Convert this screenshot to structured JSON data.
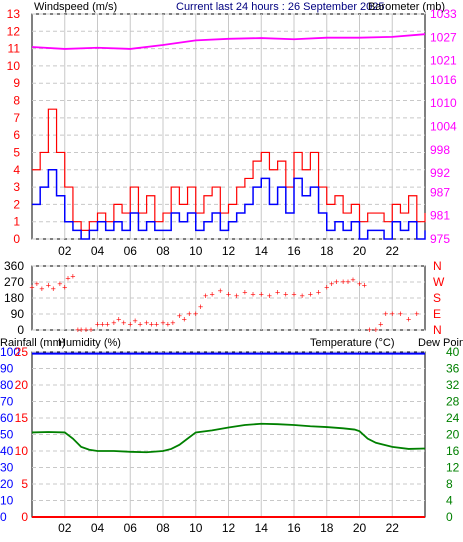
{
  "header": {
    "windspeed_label": "Windspeed (m/s)",
    "title": "Current last 24 hours : 26 September 2025",
    "barometer_label": "Barometer (mb)"
  },
  "panel_labels": {
    "rainfall": "Rainfall (mm)",
    "humidity": "Humidity (%)",
    "temperature": "Temperature (°C)",
    "dew_point": "Dew Point"
  },
  "colors": {
    "wind_gust": "#ff0000",
    "wind_avg": "#0000ff",
    "barometer": "#ff00ff",
    "rain": "#ff0000",
    "humidity": "#0000ff",
    "temperature": "#008000",
    "left_axis_red": "#ff0000",
    "grid": "#c8c8c8"
  },
  "chart_data": [
    {
      "type": "line",
      "x_ticks": [
        "02",
        "04",
        "06",
        "08",
        "10",
        "12",
        "14",
        "16",
        "18",
        "20",
        "22"
      ],
      "x_range_hours": [
        0,
        24
      ],
      "left_axis": {
        "label": "Windspeed (m/s)",
        "ticks": [
          "0",
          "1",
          "2",
          "3",
          "4",
          "5",
          "6",
          "7",
          "8",
          "9",
          "10",
          "11",
          "12",
          "13"
        ],
        "range": [
          0,
          13
        ]
      },
      "right_axis": {
        "label": "Barometer (mb)",
        "ticks": [
          "975",
          "981",
          "987",
          "992",
          "998",
          "1004",
          "1010",
          "1016",
          "1021",
          "1027",
          "1033"
        ],
        "range": [
          975,
          1033
        ]
      },
      "series": [
        {
          "name": "gust",
          "axis": "left",
          "x": [
            0,
            0.5,
            1,
            1.5,
            2,
            2.5,
            3,
            3.5,
            4,
            4.5,
            5,
            5.5,
            6,
            6.5,
            7,
            7.5,
            8,
            8.5,
            9,
            9.5,
            10,
            10.5,
            11,
            11.5,
            12,
            12.5,
            13,
            13.5,
            14,
            14.5,
            15,
            15.5,
            16,
            16.5,
            17,
            17.5,
            18,
            18.5,
            19,
            19.5,
            20,
            20.5,
            21,
            21.5,
            22,
            22.5,
            23,
            23.5,
            24
          ],
          "values": [
            4,
            5,
            7.5,
            5,
            3,
            1,
            0.5,
            1,
            1.5,
            1,
            2,
            1.5,
            3,
            1.5,
            2.5,
            1,
            1.5,
            3,
            2,
            3,
            1.5,
            2.5,
            3,
            1.5,
            2,
            3,
            3.5,
            4.5,
            5,
            4,
            4.5,
            3,
            5,
            4,
            5,
            3,
            2,
            2.5,
            1.5,
            2,
            1,
            1.5,
            1.5,
            1,
            2,
            1.5,
            2.5,
            1,
            1.5
          ]
        },
        {
          "name": "average",
          "axis": "left",
          "x": [
            0,
            0.5,
            1,
            1.5,
            2,
            2.5,
            3,
            3.5,
            4,
            4.5,
            5,
            5.5,
            6,
            6.5,
            7,
            7.5,
            8,
            8.5,
            9,
            9.5,
            10,
            10.5,
            11,
            11.5,
            12,
            12.5,
            13,
            13.5,
            14,
            14.5,
            15,
            15.5,
            16,
            16.5,
            17,
            17.5,
            18,
            18.5,
            19,
            19.5,
            20,
            20.5,
            21,
            21.5,
            22,
            22.5,
            23,
            23.5,
            24
          ],
          "values": [
            2,
            3,
            4,
            2.5,
            1,
            0.5,
            0,
            0.5,
            1,
            0.5,
            1,
            0.5,
            1.5,
            0.5,
            1,
            0.5,
            0.5,
            1.5,
            1,
            1.5,
            0.5,
            1,
            1.5,
            0.5,
            1,
            1.5,
            2,
            3,
            3.5,
            2,
            3,
            1.5,
            3.5,
            2.5,
            3,
            1.5,
            0.5,
            1,
            0.5,
            1,
            0,
            0.5,
            0.5,
            0,
            1,
            0.5,
            1,
            0,
            0.5
          ]
        },
        {
          "name": "barometer",
          "axis": "right",
          "x": [
            0,
            2,
            4,
            6,
            8,
            10,
            12,
            14,
            16,
            18,
            20,
            22,
            24
          ],
          "values": [
            1024.5,
            1024,
            1024.3,
            1024,
            1025,
            1026.2,
            1026.6,
            1026.8,
            1026.5,
            1026.9,
            1026.9,
            1027.1,
            1027.8
          ]
        }
      ]
    },
    {
      "type": "scatter",
      "x_ticks": [
        "02",
        "04",
        "06",
        "08",
        "10",
        "12",
        "14",
        "16",
        "18",
        "20",
        "22"
      ],
      "left_axis": {
        "ticks": [
          "0",
          "90",
          "180",
          "270",
          "360"
        ],
        "range": [
          0,
          360
        ]
      },
      "right_axis": {
        "ticks": [
          "N",
          "E",
          "S",
          "W",
          "N"
        ]
      },
      "series": [
        {
          "name": "wind direction",
          "x": [
            0,
            0.3,
            0.6,
            1,
            1.3,
            1.7,
            2,
            2.2,
            2.5,
            2.8,
            3,
            3.3,
            3.6,
            4,
            4.3,
            4.6,
            5,
            5.3,
            5.6,
            6,
            6.3,
            6.6,
            7,
            7.3,
            7.6,
            8,
            8.3,
            8.6,
            9,
            9.3,
            9.6,
            10,
            10.3,
            10.6,
            11,
            11.5,
            12,
            12.5,
            13,
            13.5,
            14,
            14.5,
            15,
            15.5,
            16,
            16.5,
            17,
            17.5,
            18,
            18.3,
            18.6,
            19,
            19.3,
            19.6,
            20,
            20.3,
            20.6,
            21,
            21.3,
            21.6,
            22,
            22.5,
            23,
            23.5
          ],
          "values": [
            240,
            260,
            230,
            250,
            230,
            260,
            240,
            290,
            300,
            0,
            0,
            0,
            0,
            30,
            30,
            30,
            40,
            60,
            40,
            30,
            50,
            30,
            40,
            30,
            30,
            40,
            30,
            40,
            80,
            60,
            90,
            90,
            130,
            190,
            200,
            220,
            200,
            190,
            210,
            200,
            200,
            190,
            210,
            200,
            200,
            190,
            200,
            210,
            240,
            260,
            270,
            270,
            270,
            280,
            260,
            250,
            0,
            0,
            30,
            90,
            90,
            90,
            60,
            90
          ]
        }
      ]
    },
    {
      "type": "line",
      "x_ticks": [
        "02",
        "04",
        "06",
        "08",
        "10",
        "12",
        "14",
        "16",
        "18",
        "20",
        "22"
      ],
      "left_axis_rain": {
        "label": "Rainfall (mm)",
        "ticks": [
          "0",
          "5",
          "10",
          "15",
          "20",
          "25"
        ],
        "range": [
          0,
          25
        ]
      },
      "left_axis_humidity": {
        "label": "Humidity (%)",
        "ticks": [
          "0",
          "10",
          "20",
          "30",
          "40",
          "50",
          "60",
          "70",
          "80",
          "90",
          "100"
        ],
        "range": [
          0,
          100
        ]
      },
      "right_axis": {
        "label": "Temperature (°C)",
        "ticks": [
          "0",
          "4",
          "8",
          "12",
          "16",
          "20",
          "24",
          "28",
          "32",
          "36",
          "40"
        ],
        "range": [
          0,
          40
        ]
      },
      "series": [
        {
          "name": "rainfall",
          "axis": "rain",
          "x": [
            0,
            24
          ],
          "values": [
            0,
            0
          ]
        },
        {
          "name": "humidity",
          "axis": "humidity",
          "x": [
            0,
            24
          ],
          "values": [
            99,
            99
          ]
        },
        {
          "name": "temperature",
          "axis": "right",
          "x": [
            0,
            1,
            2,
            2.5,
            3,
            3.5,
            4,
            5,
            6,
            7,
            8,
            8.5,
            9,
            9.5,
            10,
            11,
            12,
            13,
            14,
            15,
            16,
            17,
            18,
            19,
            19.7,
            20,
            20.5,
            21,
            22,
            23,
            24
          ],
          "values": [
            20.5,
            20.6,
            20.5,
            19,
            17,
            16.3,
            16,
            16,
            15.8,
            15.7,
            16,
            16.5,
            17.5,
            19,
            20.5,
            21,
            21.7,
            22.3,
            22.6,
            22.5,
            22.3,
            22,
            21.8,
            21.5,
            21.2,
            20.8,
            19,
            18,
            17,
            16.5,
            16.6
          ]
        }
      ]
    }
  ]
}
